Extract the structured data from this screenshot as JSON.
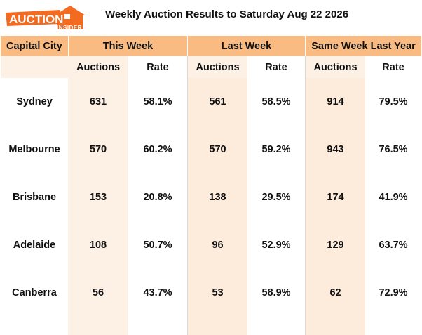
{
  "brand": {
    "logo_word": "AUCTION",
    "logo_sub": "INSIDER",
    "orange": "#f26b21",
    "header_fill": "#f9bb82",
    "column_fill": "#fdebdc"
  },
  "title": "Weekly Auction Results to Saturday Aug 22 2026",
  "headers": {
    "city": "Capital City",
    "groups": [
      "This Week",
      "Last Week",
      "Same Week Last Year"
    ],
    "auctions": "Auctions",
    "rate": "Rate"
  },
  "chart_data": {
    "type": "table",
    "columns": [
      "Capital City",
      "This Week Auctions",
      "This Week Rate",
      "Last Week Auctions",
      "Last Week Rate",
      "Same Week Last Year Auctions",
      "Same Week Last Year Rate"
    ],
    "rows": [
      {
        "city": "Sydney",
        "tw_auctions": "631",
        "tw_rate": "58.1%",
        "lw_auctions": "561",
        "lw_rate": "58.5%",
        "ly_auctions": "914",
        "ly_rate": "79.5%"
      },
      {
        "city": "Melbourne",
        "tw_auctions": "570",
        "tw_rate": "60.2%",
        "lw_auctions": "570",
        "lw_rate": "59.2%",
        "ly_auctions": "943",
        "ly_rate": "76.5%"
      },
      {
        "city": "Brisbane",
        "tw_auctions": "153",
        "tw_rate": "20.8%",
        "lw_auctions": "138",
        "lw_rate": "29.5%",
        "ly_auctions": "174",
        "ly_rate": "41.9%"
      },
      {
        "city": "Adelaide",
        "tw_auctions": "108",
        "tw_rate": "50.7%",
        "lw_auctions": "96",
        "lw_rate": "52.9%",
        "ly_auctions": "129",
        "ly_rate": "63.7%"
      },
      {
        "city": "Canberra",
        "tw_auctions": "56",
        "tw_rate": "43.7%",
        "lw_auctions": "53",
        "lw_rate": "58.9%",
        "ly_auctions": "62",
        "ly_rate": "72.9%"
      }
    ]
  }
}
